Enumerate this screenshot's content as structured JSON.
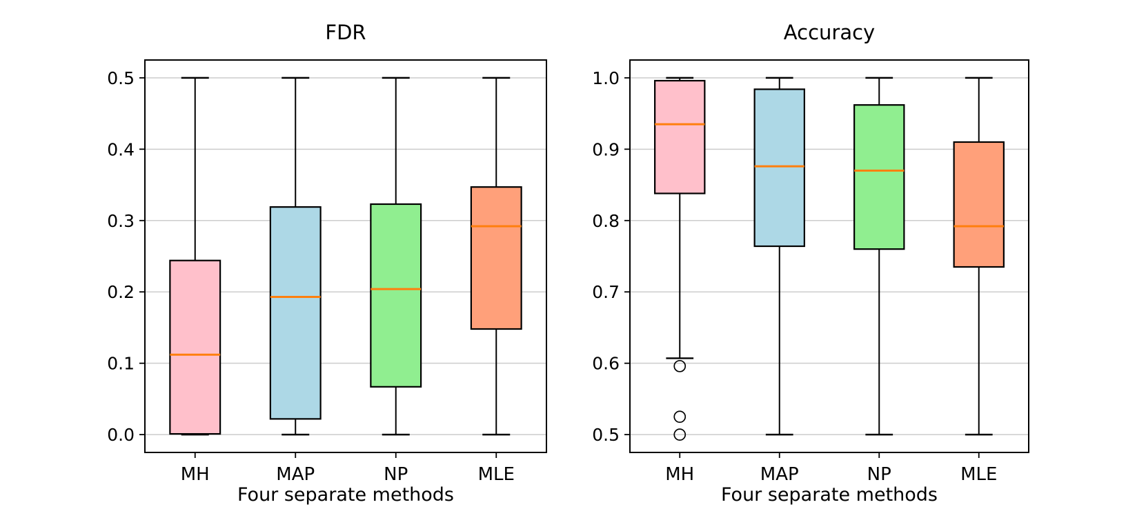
{
  "chart_data": [
    {
      "type": "box",
      "title": "FDR",
      "xlabel": "Four separate methods",
      "categories": [
        "MH",
        "MAP",
        "NP",
        "MLE"
      ],
      "ylim": [
        -0.025,
        0.525
      ],
      "yticks": [
        0.0,
        0.1,
        0.2,
        0.3,
        0.4,
        0.5
      ],
      "ytick_labels": [
        "0.0",
        "0.1",
        "0.2",
        "0.3",
        "0.4",
        "0.5"
      ],
      "grid": true,
      "legend_position": "none",
      "series": [
        {
          "name": "MH",
          "color": "#ffc0cb",
          "whislo": 0.0,
          "q1": 0.001,
          "med": 0.112,
          "q3": 0.244,
          "whishi": 0.5,
          "fliers": []
        },
        {
          "name": "MAP",
          "color": "#add8e6",
          "whislo": 0.0,
          "q1": 0.022,
          "med": 0.193,
          "q3": 0.319,
          "whishi": 0.5,
          "fliers": []
        },
        {
          "name": "NP",
          "color": "#90ee90",
          "whislo": 0.0,
          "q1": 0.067,
          "med": 0.204,
          "q3": 0.323,
          "whishi": 0.5,
          "fliers": []
        },
        {
          "name": "MLE",
          "color": "#ffa07a",
          "whislo": 0.0,
          "q1": 0.148,
          "med": 0.292,
          "q3": 0.347,
          "whishi": 0.5,
          "fliers": []
        }
      ]
    },
    {
      "type": "box",
      "title": "Accuracy",
      "xlabel": "Four separate methods",
      "categories": [
        "MH",
        "MAP",
        "NP",
        "MLE"
      ],
      "ylim": [
        0.475,
        1.025
      ],
      "yticks": [
        0.5,
        0.6,
        0.7,
        0.8,
        0.9,
        1.0
      ],
      "ytick_labels": [
        "0.5",
        "0.6",
        "0.7",
        "0.8",
        "0.9",
        "1.0"
      ],
      "grid": true,
      "legend_position": "none",
      "series": [
        {
          "name": "MH",
          "color": "#ffc0cb",
          "whislo": 0.607,
          "q1": 0.838,
          "med": 0.935,
          "q3": 0.996,
          "whishi": 1.0,
          "fliers": [
            0.596,
            0.525,
            0.5
          ]
        },
        {
          "name": "MAP",
          "color": "#add8e6",
          "whislo": 0.5,
          "q1": 0.764,
          "med": 0.876,
          "q3": 0.984,
          "whishi": 1.0,
          "fliers": []
        },
        {
          "name": "NP",
          "color": "#90ee90",
          "whislo": 0.5,
          "q1": 0.76,
          "med": 0.87,
          "q3": 0.962,
          "whishi": 1.0,
          "fliers": []
        },
        {
          "name": "MLE",
          "color": "#ffa07a",
          "whislo": 0.5,
          "q1": 0.735,
          "med": 0.792,
          "q3": 0.91,
          "whishi": 1.0,
          "fliers": []
        }
      ]
    }
  ],
  "style": {
    "median_color": "#ff7f0e",
    "box_edge_color": "#000000",
    "whisker_color": "#000000",
    "grid_color": "#cccccc",
    "flier_edge_color": "#000000",
    "background_color": "#ffffff"
  }
}
